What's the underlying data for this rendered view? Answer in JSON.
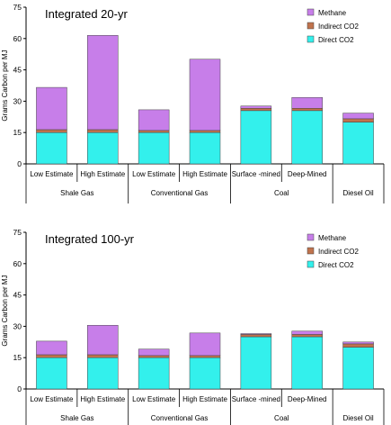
{
  "chart_data": [
    {
      "type": "bar",
      "stacked": true,
      "title": "Integrated 20-yr",
      "ylabel": "Grams Carbon per MJ",
      "ylim": [
        0,
        75
      ],
      "yticks": [
        0,
        15,
        30,
        45,
        60,
        75
      ],
      "categories": [
        "Low Estimate",
        "High Estimate",
        "Low Estimate",
        "High Estimate",
        "Surface -mined",
        "Deep-Mined",
        ""
      ],
      "groups": [
        {
          "label": "Shale Gas",
          "span": 2
        },
        {
          "label": "Conventional Gas",
          "span": 2
        },
        {
          "label": "Coal",
          "span": 2
        },
        {
          "label": "Diesel Oil",
          "span": 1
        }
      ],
      "series": [
        {
          "name": "Direct CO2",
          "color": "#33f0ec",
          "values": [
            15.0,
            15.0,
            15.0,
            15.0,
            25.5,
            25.5,
            20.0
          ]
        },
        {
          "name": "Indirect CO2",
          "color": "#c0734d",
          "values": [
            1.4,
            1.4,
            1.0,
            1.0,
            1.1,
            1.1,
            1.6
          ]
        },
        {
          "name": "Methane",
          "color": "#c77ee9",
          "values": [
            20.2,
            45.1,
            9.9,
            34.1,
            1.1,
            5.2,
            2.7
          ]
        }
      ],
      "legend": "top-right"
    },
    {
      "type": "bar",
      "stacked": true,
      "title": "Integrated 100-yr",
      "ylabel": "Grams Carbon per MJ",
      "ylim": [
        0,
        75
      ],
      "yticks": [
        0,
        15,
        30,
        45,
        60,
        75
      ],
      "categories": [
        "Low Estimate",
        "High Estimate",
        "Low Estimate",
        "High Estimate",
        "Surface -mined",
        "Deep-Mined",
        ""
      ],
      "groups": [
        {
          "label": "Shale Gas",
          "span": 2
        },
        {
          "label": "Conventional Gas",
          "span": 2
        },
        {
          "label": "Coal",
          "span": 2
        },
        {
          "label": "Diesel Oil",
          "span": 1
        }
      ],
      "series": [
        {
          "name": "Direct CO2",
          "color": "#33f0ec",
          "values": [
            15.0,
            15.0,
            15.0,
            15.0,
            25.0,
            25.0,
            20.0
          ]
        },
        {
          "name": "Indirect CO2",
          "color": "#c0734d",
          "values": [
            1.4,
            1.4,
            1.0,
            1.0,
            1.1,
            1.1,
            1.6
          ]
        },
        {
          "name": "Methane",
          "color": "#c77ee9",
          "values": [
            6.5,
            14.1,
            3.1,
            10.8,
            0.4,
            1.6,
            0.9
          ]
        }
      ],
      "legend": "top-right"
    }
  ]
}
